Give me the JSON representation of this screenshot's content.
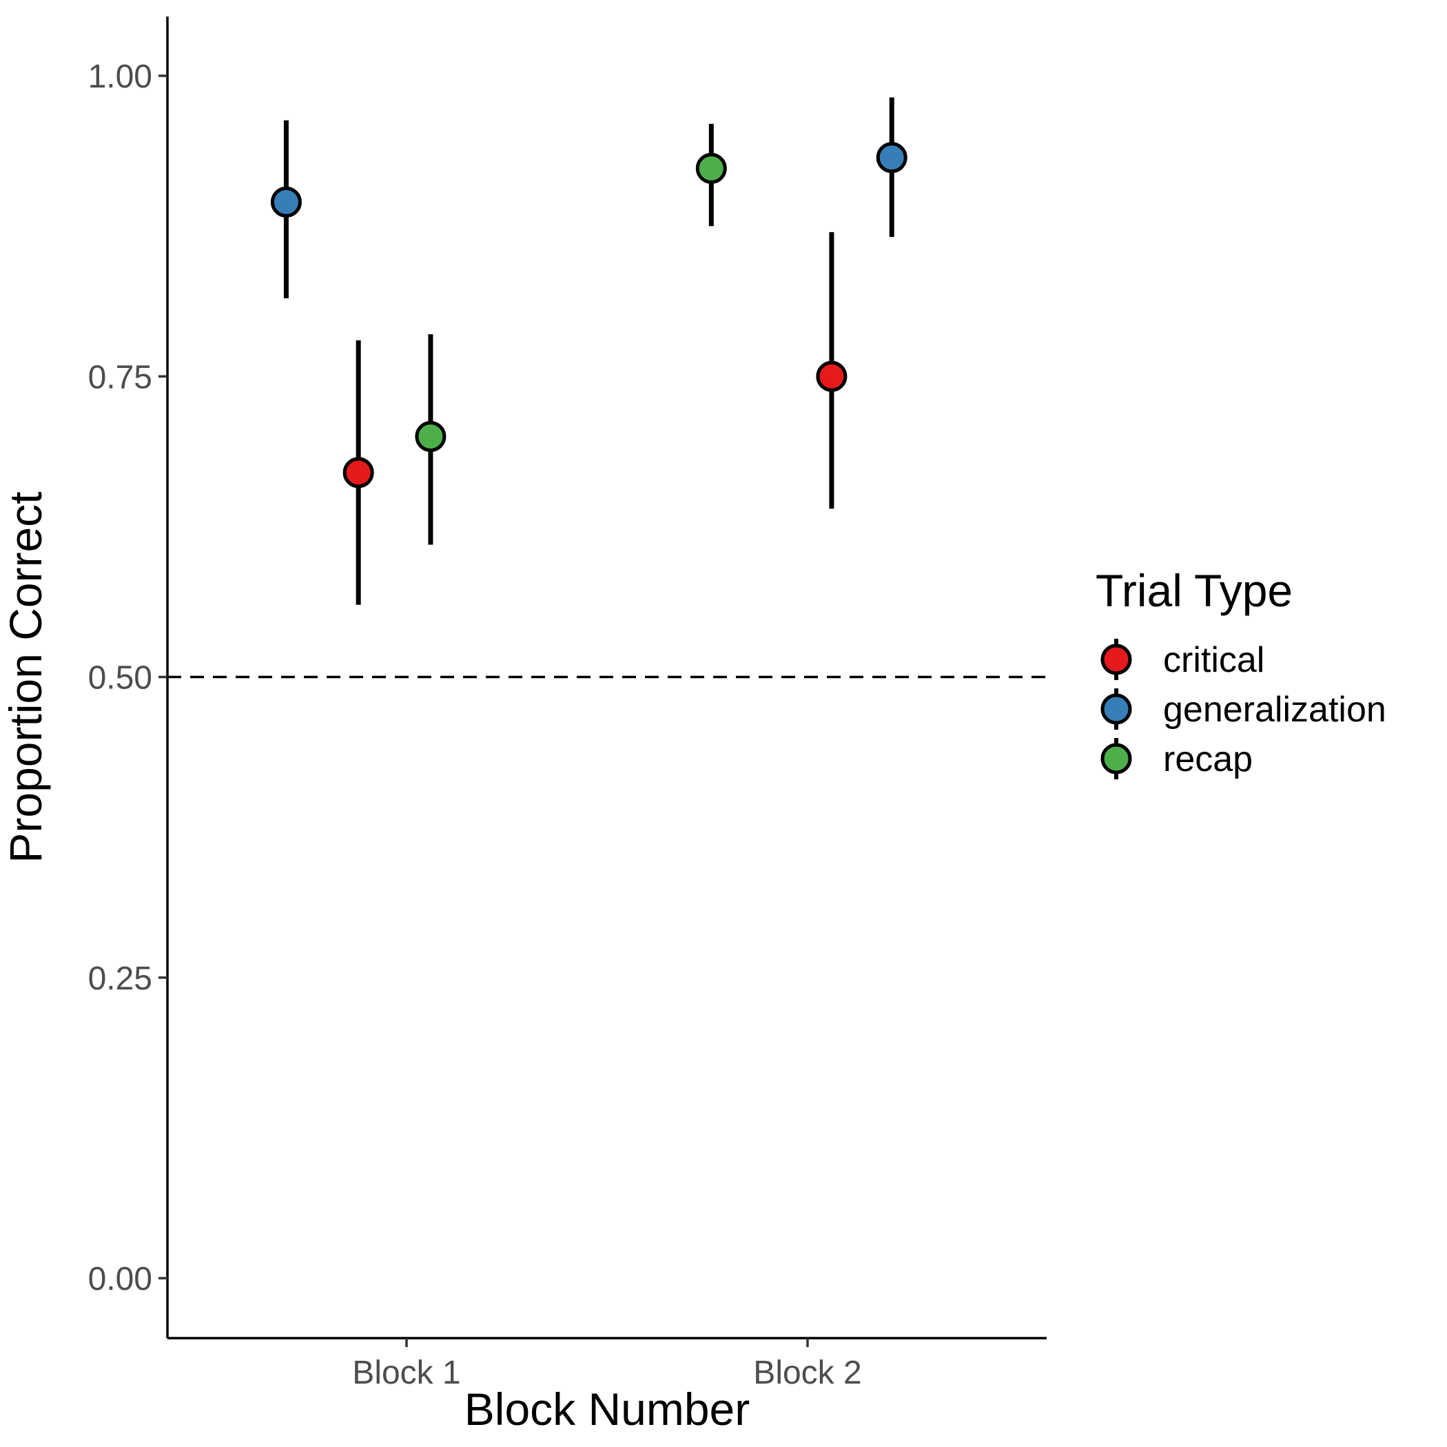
{
  "chart_data": {
    "type": "scatter",
    "title": "",
    "xlabel": "Block Number",
    "ylabel": "Proportion Correct",
    "categories": [
      "Block 1",
      "Block 2"
    ],
    "ylim": [
      -0.05,
      1.05
    ],
    "yticks": [
      0.0,
      0.25,
      0.5,
      0.75,
      1.0
    ],
    "ytick_labels": [
      "0.00",
      "0.25",
      "0.50",
      "0.75",
      "1.00"
    ],
    "reference_line": {
      "y": 0.5,
      "style": "dashed"
    },
    "grid": false,
    "legend": {
      "title": "Trial Type",
      "position": "right"
    },
    "series": [
      {
        "name": "critical",
        "color": "#E41A1C",
        "points": [
          {
            "category": "Block 1",
            "offset": -0.12,
            "y": 0.67,
            "ymin": 0.56,
            "ymax": 0.78
          },
          {
            "category": "Block 2",
            "offset": 0.06,
            "y": 0.75,
            "ymin": 0.64,
            "ymax": 0.87
          }
        ]
      },
      {
        "name": "generalization",
        "color": "#377EB8",
        "points": [
          {
            "category": "Block 1",
            "offset": -0.3,
            "y": 0.895,
            "ymin": 0.815,
            "ymax": 0.963
          },
          {
            "category": "Block 2",
            "offset": 0.21,
            "y": 0.932,
            "ymin": 0.866,
            "ymax": 0.982
          }
        ]
      },
      {
        "name": "recap",
        "color": "#4DAF4A",
        "points": [
          {
            "category": "Block 1",
            "offset": 0.06,
            "y": 0.7,
            "ymin": 0.61,
            "ymax": 0.785
          },
          {
            "category": "Block 2",
            "offset": -0.24,
            "y": 0.923,
            "ymin": 0.875,
            "ymax": 0.96
          }
        ]
      }
    ]
  }
}
